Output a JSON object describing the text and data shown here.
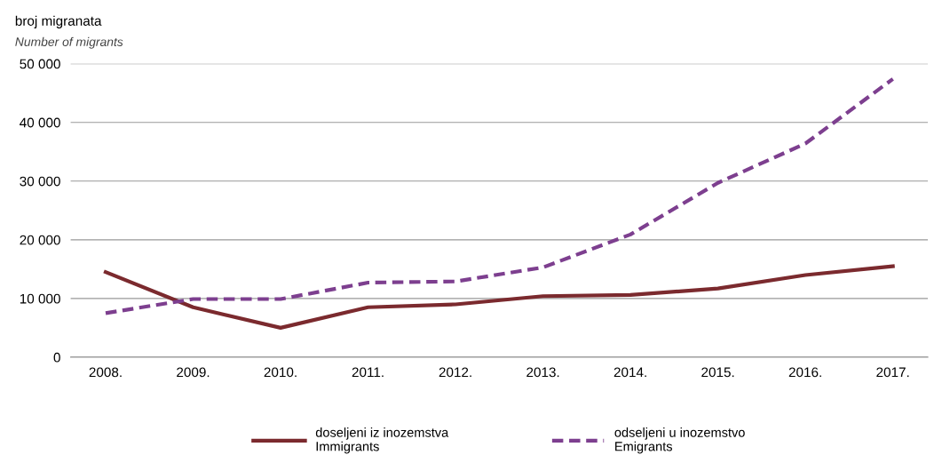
{
  "chart_data": {
    "type": "line",
    "title": "broj migranata",
    "subtitle": "Number of migrants",
    "categories": [
      "2008.",
      "2009.",
      "2010.",
      "2011.",
      "2012.",
      "2013.",
      "2014.",
      "2015.",
      "2016.",
      "2017."
    ],
    "series": [
      {
        "name": "doseljeni iz inozemstva\nImmigrants",
        "color": "#7b2a2e",
        "line_style": "solid",
        "values": [
          14500,
          8500,
          5000,
          8500,
          9000,
          10400,
          10600,
          11700,
          14000,
          15500
        ]
      },
      {
        "name": "odseljeni u inozemstvo\nEmigrants",
        "color": "#7d3f8f",
        "line_style": "dashed",
        "values": [
          7500,
          9900,
          9900,
          12700,
          12900,
          15300,
          20900,
          29700,
          36400,
          47400
        ]
      }
    ],
    "ylim": [
      0,
      50000
    ],
    "yticks": [
      {
        "value": 0,
        "label": "0"
      },
      {
        "value": 10000,
        "label": "10 000"
      },
      {
        "value": 20000,
        "label": "20 000"
      },
      {
        "value": 30000,
        "label": "30 000"
      },
      {
        "value": 40000,
        "label": "40 000"
      },
      {
        "value": 50000,
        "label": "50 000"
      }
    ],
    "grid": "y",
    "legend": "bottom",
    "marker": "none"
  }
}
